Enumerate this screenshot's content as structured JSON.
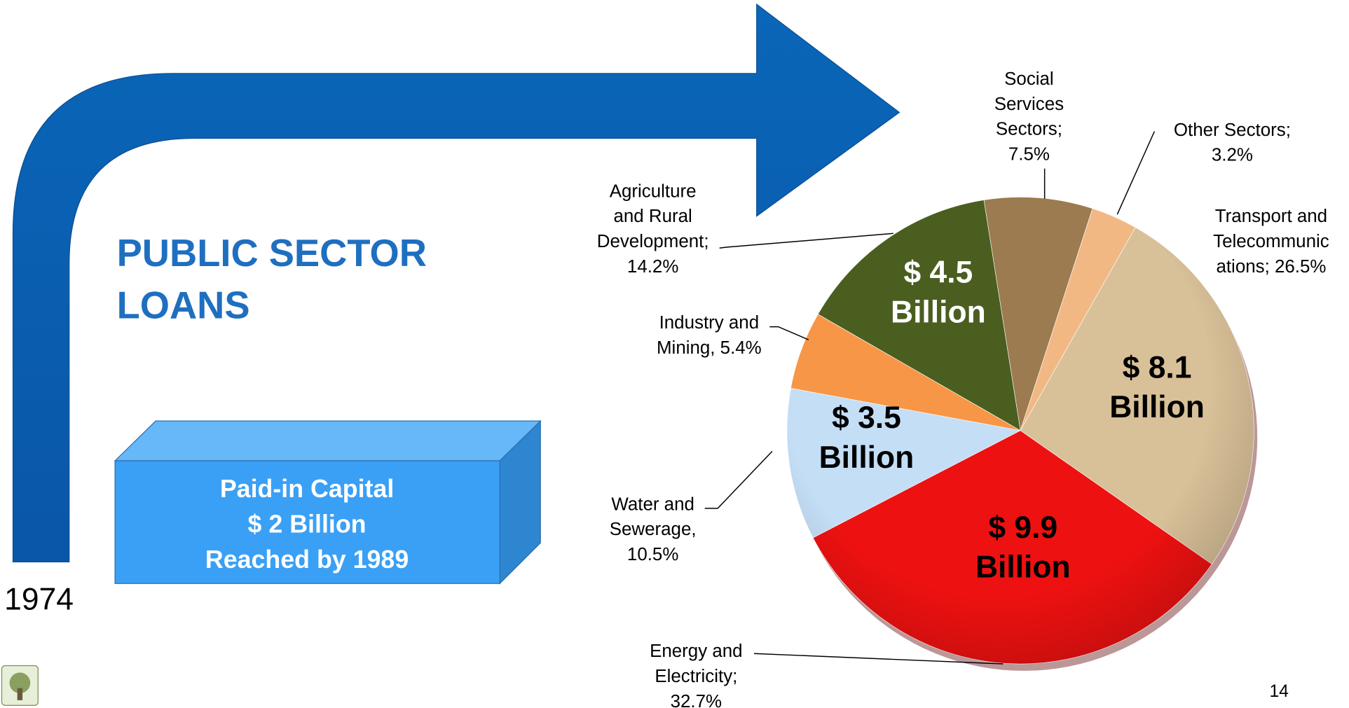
{
  "chart_data": {
    "type": "pie",
    "title_lines": [
      "PUBLIC SECTOR",
      "LOANS"
    ],
    "categories_lines": [
      [
        "Social",
        "Services",
        "Sectors;",
        "7.5%"
      ],
      [
        "Other Sectors;",
        "3.2%"
      ],
      [
        "Transport and",
        "Telecommunic",
        "ations; 26.5%"
      ],
      [
        "Energy and",
        "Electricity;",
        "32.7%"
      ],
      [
        "Water and",
        "Sewerage,",
        "10.5%"
      ],
      [
        "Industry and",
        "Mining, 5.4%"
      ],
      [
        "Agriculture",
        "and Rural",
        "Development;",
        "14.2%"
      ]
    ],
    "values": [
      7.5,
      3.2,
      26.5,
      32.7,
      10.5,
      5.4,
      14.2
    ],
    "colors": [
      "#9b7b4f",
      "#f2b884",
      "#d8c098",
      "#ee1111",
      "#c4def6",
      "#f79646",
      "#4a5e1f"
    ],
    "annotations": [
      [
        "$ 4.5",
        "Billion"
      ],
      [
        "$ 8.1",
        "Billion"
      ],
      [
        "$ 3.5",
        "Billion"
      ],
      [
        "$ 9.9",
        "Billion"
      ]
    ],
    "box_lines": [
      "Paid-in Capital",
      "$ 2 Billion",
      "Reached by 1989"
    ],
    "start_year": "1974",
    "page_number": "14"
  }
}
